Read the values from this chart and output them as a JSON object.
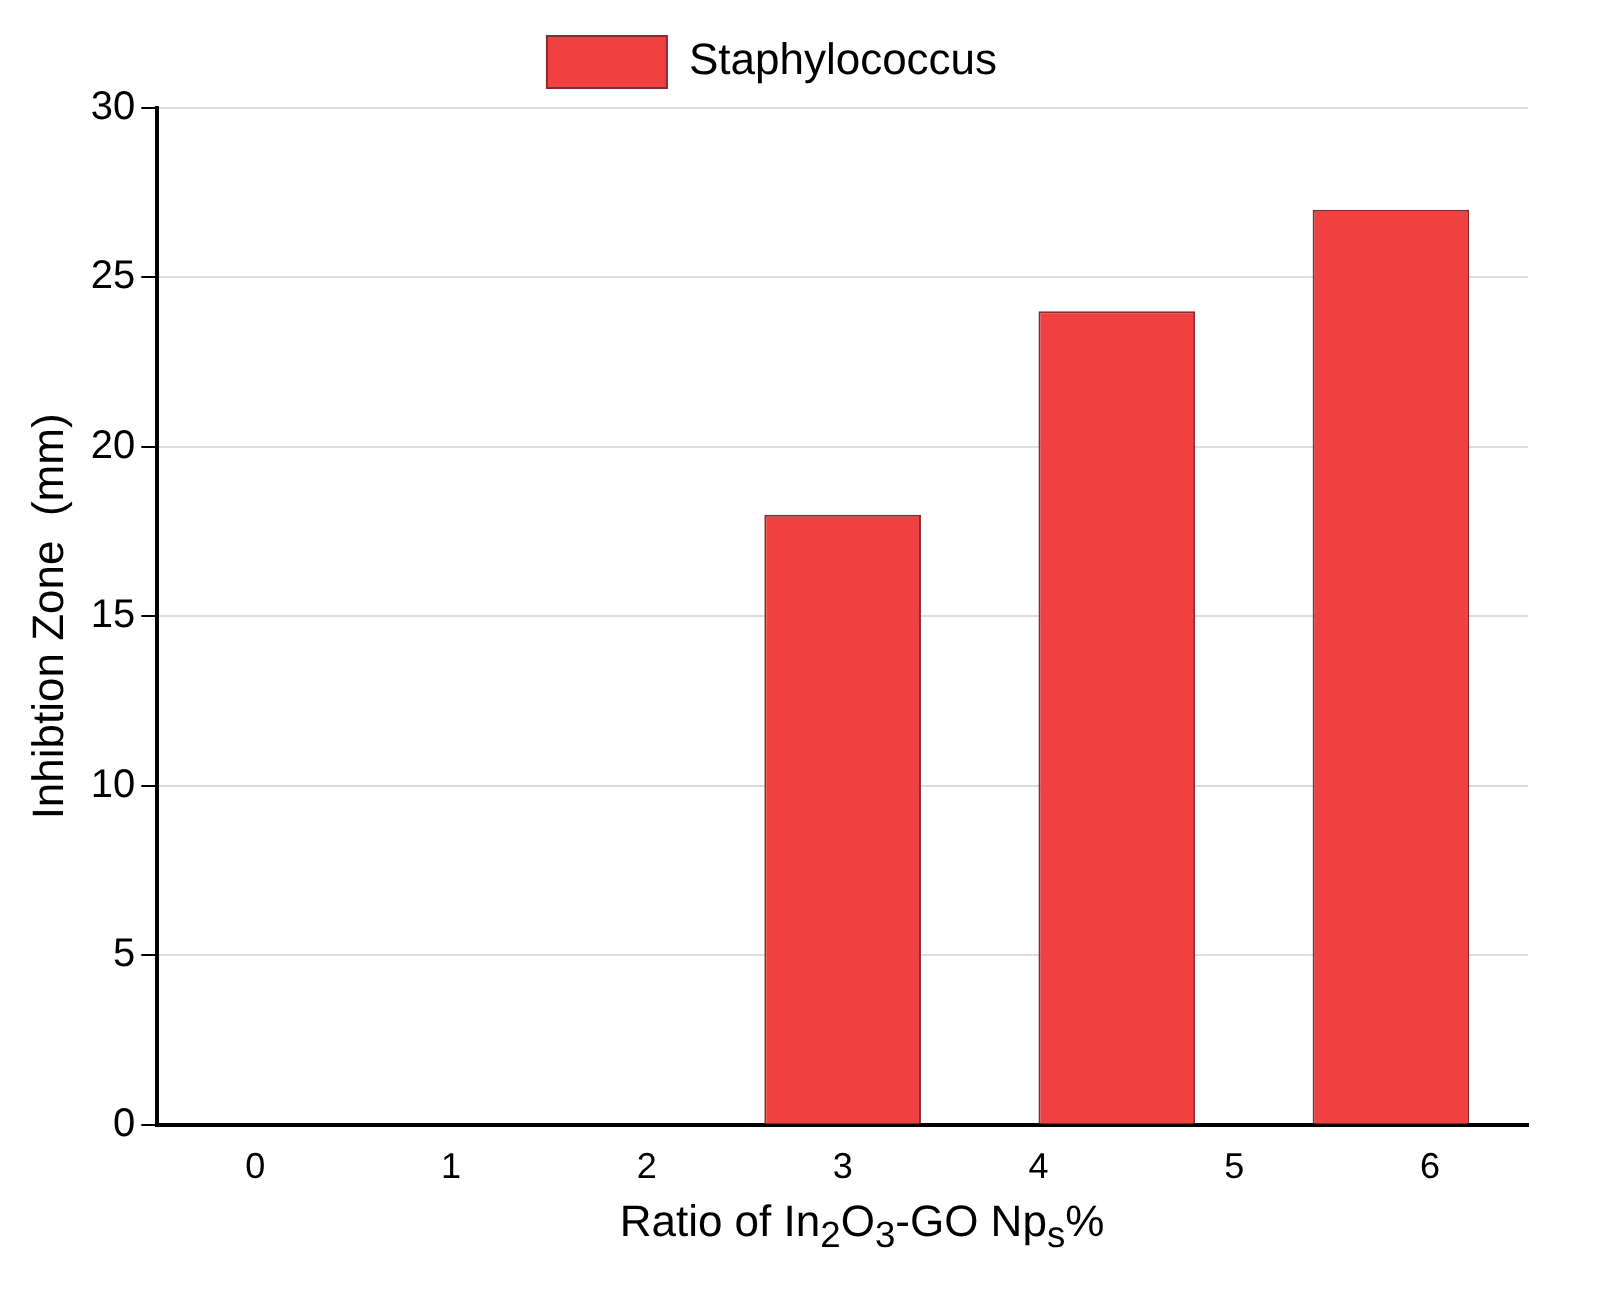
{
  "chart_data": {
    "type": "bar",
    "xlabel": "Ratio of In$_{2}$O$_{3}$-GO Np$_{s}$%",
    "ylabel": "Inhibtion Zone  (mm)",
    "x": [
      0.2,
      1.6,
      3.0,
      4.4,
      5.8
    ],
    "series": [
      {
        "name": "Staphylococcus",
        "color": "#ef4042",
        "values": [
          0,
          0,
          18,
          24,
          27
        ]
      }
    ],
    "xlim": [
      -0.5,
      6.5
    ],
    "xticks": [
      0,
      1,
      2,
      3,
      4,
      5,
      6
    ],
    "ylim": [
      0,
      30
    ],
    "yticks": [
      0,
      5,
      10,
      15,
      20,
      25,
      30
    ],
    "grid": "y",
    "legend": "top"
  }
}
